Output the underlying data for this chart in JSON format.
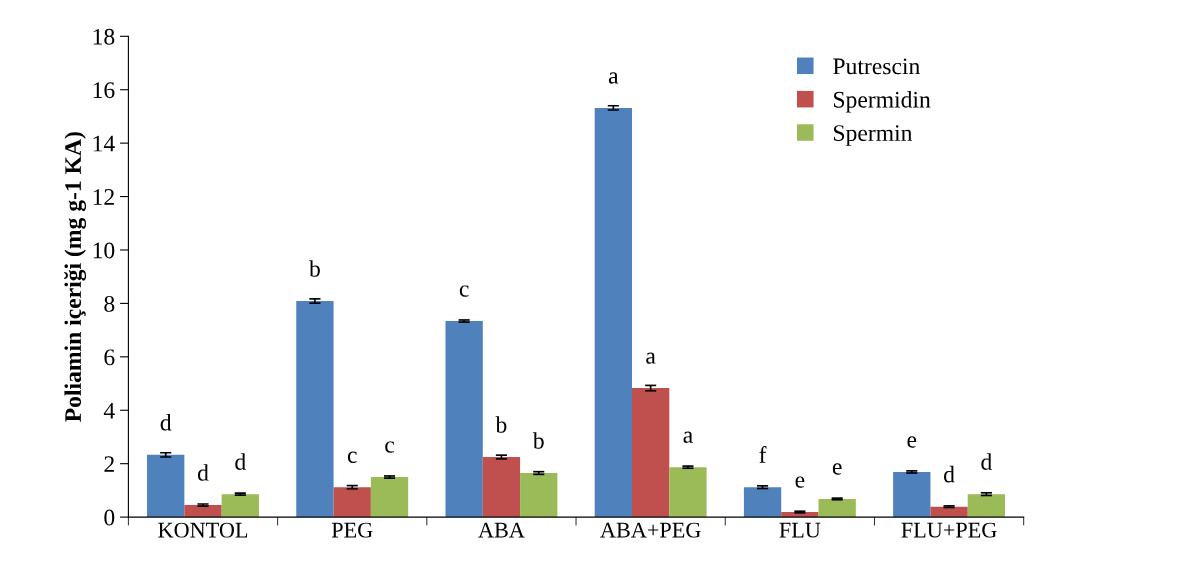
{
  "chart_data": {
    "type": "bar",
    "ylabel": "Poliamin içeriği (mg g-1 KA)",
    "categories": [
      "KONTOL",
      "PEG",
      "ABA",
      "ABA+PEG",
      "FLU",
      "FLU+PEG"
    ],
    "series": [
      {
        "name": "Putrescin",
        "color": "#4f81bd",
        "values": [
          2.33,
          8.09,
          7.34,
          15.32,
          1.12,
          1.69
        ],
        "errors": [
          0.08,
          0.08,
          0.04,
          0.08,
          0.05,
          0.04
        ],
        "value_labels": [
          "d",
          "b",
          "c",
          "a",
          "f",
          "e"
        ]
      },
      {
        "name": "Spermidin",
        "color": "#c0504d",
        "values": [
          0.45,
          1.12,
          2.25,
          4.83,
          0.19,
          0.39
        ],
        "errors": [
          0.04,
          0.06,
          0.07,
          0.1,
          0.03,
          0.03
        ],
        "value_labels": [
          "d",
          "c",
          "b",
          "a",
          "e",
          "d"
        ]
      },
      {
        "name": "Spermin",
        "color": "#9bbb59",
        "values": [
          0.86,
          1.5,
          1.65,
          1.87,
          0.68,
          0.86
        ],
        "errors": [
          0.04,
          0.04,
          0.05,
          0.04,
          0.03,
          0.05
        ],
        "value_labels": [
          "d",
          "c",
          "b",
          "a",
          "e",
          "d"
        ]
      }
    ],
    "ylim": [
      0,
      18
    ],
    "yticks": [
      0,
      2,
      4,
      6,
      8,
      10,
      12,
      14,
      16,
      18
    ],
    "grid": false,
    "legend": "top right"
  }
}
